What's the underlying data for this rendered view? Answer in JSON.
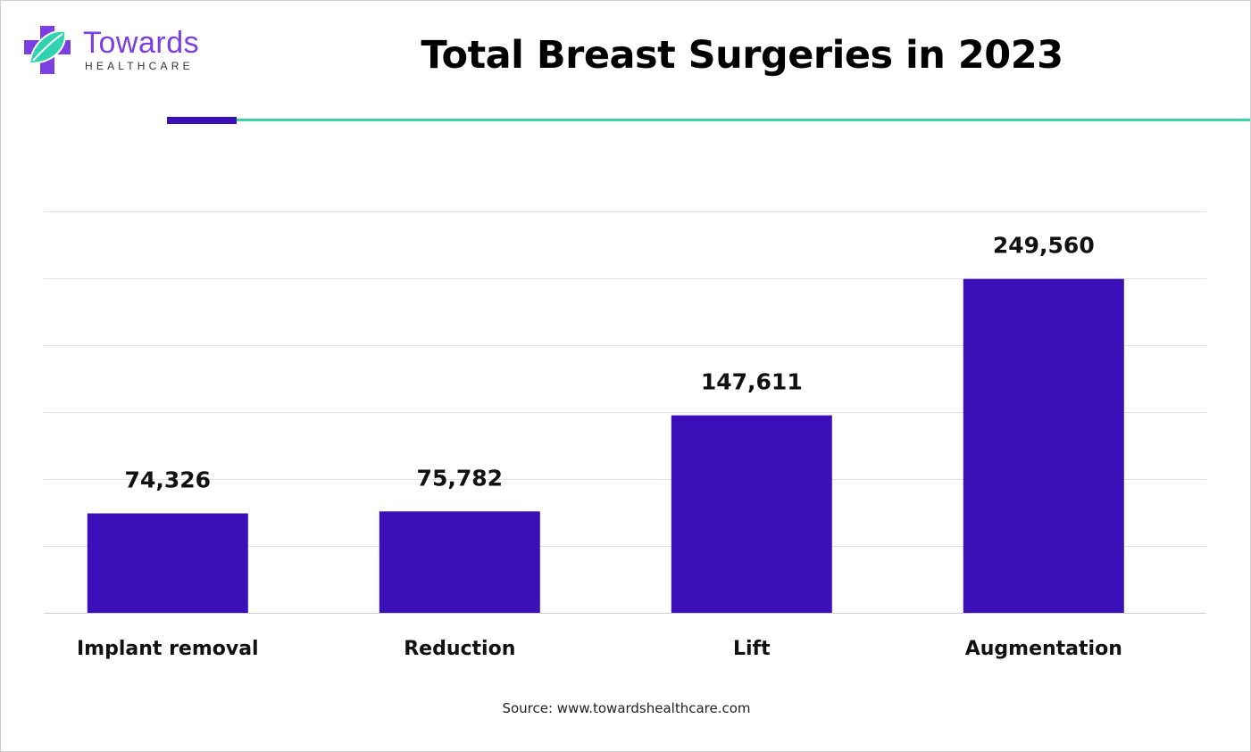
{
  "brand": {
    "name": "Towards",
    "sub": "HEALTHCARE",
    "colors": {
      "purple": "#7b3fe4",
      "teal": "#2fd3b0"
    }
  },
  "chart_data": {
    "type": "bar",
    "title": "Total Breast Surgeries in 2023",
    "categories": [
      "Implant removal",
      "Reduction",
      "Lift",
      "Augmentation"
    ],
    "values": [
      74326,
      75782,
      147611,
      249560
    ],
    "value_labels": [
      "74,326",
      "75,782",
      "147,611",
      "249,560"
    ],
    "xlabel": "",
    "ylabel": "",
    "ylim": [
      0,
      300000
    ],
    "gridlines": [
      0,
      50000,
      100000,
      150000,
      200000,
      250000,
      300000
    ],
    "grid": true,
    "legend": "none",
    "bar_color": "#3c10b8"
  },
  "source": "Source: www.towardshealthcare.com"
}
